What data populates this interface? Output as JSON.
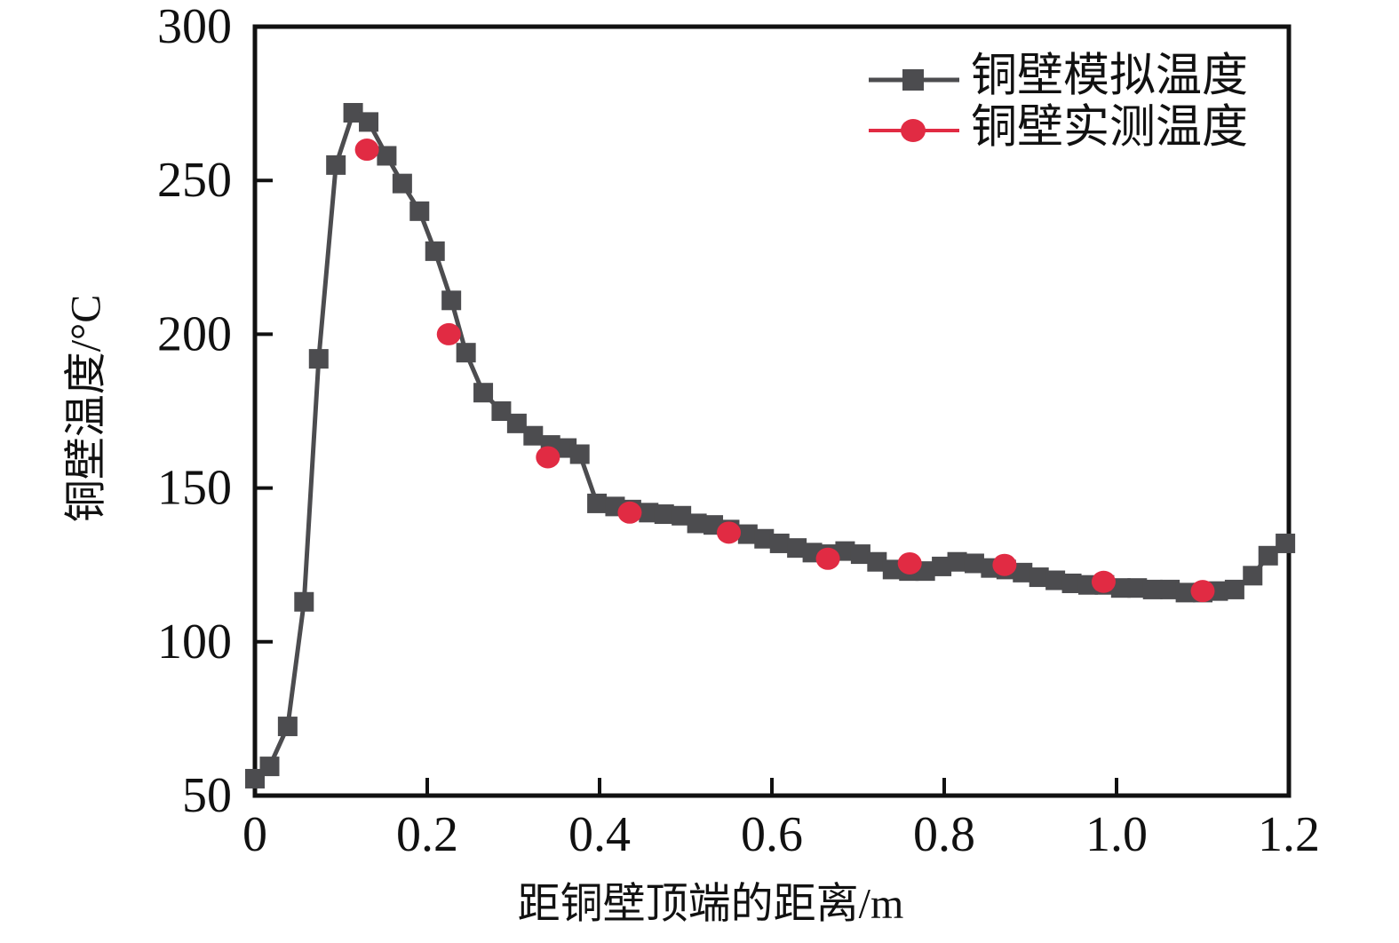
{
  "figure": {
    "background": "#ffffff",
    "frame_color": "#111111",
    "text_color": "#111111"
  },
  "chart_data": {
    "type": "line",
    "title": "",
    "xlabel": "距铜壁顶端的距离/m",
    "ylabel": "铜壁温度/°C",
    "xlim": [
      0,
      1.2
    ],
    "ylim": [
      50,
      300
    ],
    "x_tick_values": [
      0,
      0.2,
      0.4,
      0.6,
      0.8,
      1.0,
      1.2
    ],
    "x_tick_labels": [
      "0",
      "0.2",
      "0.4",
      "0.6",
      "0.8",
      "1.0",
      "1.2"
    ],
    "y_tick_values": [
      50,
      100,
      150,
      200,
      250,
      300
    ],
    "y_tick_labels": [
      "50",
      "100",
      "150",
      "200",
      "250",
      "300"
    ],
    "grid": false,
    "legend_position": "top-right-inside",
    "series": [
      {
        "name": "铜壁模拟温度",
        "marker": "square",
        "color": "#4c4c4f",
        "connect": true,
        "points": [
          [
            0.0,
            55.5
          ],
          [
            0.017,
            59.5
          ],
          [
            0.038,
            72.5
          ],
          [
            0.057,
            113
          ],
          [
            0.074,
            192
          ],
          [
            0.094,
            255
          ],
          [
            0.114,
            272
          ],
          [
            0.132,
            269
          ],
          [
            0.153,
            258
          ],
          [
            0.171,
            249
          ],
          [
            0.191,
            240
          ],
          [
            0.209,
            227
          ],
          [
            0.228,
            211
          ],
          [
            0.245,
            194
          ],
          [
            0.265,
            181
          ],
          [
            0.286,
            175
          ],
          [
            0.304,
            171
          ],
          [
            0.323,
            167
          ],
          [
            0.343,
            164
          ],
          [
            0.362,
            163
          ],
          [
            0.377,
            161
          ],
          [
            0.397,
            145
          ],
          [
            0.418,
            144
          ],
          [
            0.437,
            143
          ],
          [
            0.457,
            142
          ],
          [
            0.475,
            141.5
          ],
          [
            0.495,
            141
          ],
          [
            0.513,
            138.5
          ],
          [
            0.532,
            138
          ],
          [
            0.551,
            136.5
          ],
          [
            0.572,
            135
          ],
          [
            0.591,
            133.5
          ],
          [
            0.609,
            132
          ],
          [
            0.629,
            130.5
          ],
          [
            0.647,
            129
          ],
          [
            0.666,
            128.5
          ],
          [
            0.685,
            129.5
          ],
          [
            0.703,
            128.5
          ],
          [
            0.722,
            126
          ],
          [
            0.74,
            123.5
          ],
          [
            0.759,
            123
          ],
          [
            0.778,
            123
          ],
          [
            0.797,
            124.5
          ],
          [
            0.815,
            126
          ],
          [
            0.835,
            125.5
          ],
          [
            0.854,
            124
          ],
          [
            0.872,
            123.5
          ],
          [
            0.891,
            122.5
          ],
          [
            0.91,
            121
          ],
          [
            0.929,
            120
          ],
          [
            0.948,
            119
          ],
          [
            0.967,
            118.5
          ],
          [
            0.986,
            118.5
          ],
          [
            1.005,
            117.5
          ],
          [
            1.024,
            117.5
          ],
          [
            1.042,
            117
          ],
          [
            1.062,
            117
          ],
          [
            1.08,
            116
          ],
          [
            1.1,
            116
          ],
          [
            1.118,
            116.5
          ],
          [
            1.137,
            117
          ],
          [
            1.158,
            121.5
          ],
          [
            1.176,
            128
          ],
          [
            1.196,
            132
          ]
        ]
      },
      {
        "name": "铜壁实测温度",
        "marker": "circle",
        "color": "#e12b43",
        "connect": false,
        "points": [
          [
            0.13,
            260
          ],
          [
            0.225,
            200
          ],
          [
            0.34,
            160
          ],
          [
            0.435,
            142
          ],
          [
            0.55,
            135.5
          ],
          [
            0.665,
            127
          ],
          [
            0.76,
            125.5
          ],
          [
            0.87,
            125
          ],
          [
            0.985,
            119.5
          ],
          [
            1.1,
            116.5
          ]
        ]
      }
    ]
  }
}
